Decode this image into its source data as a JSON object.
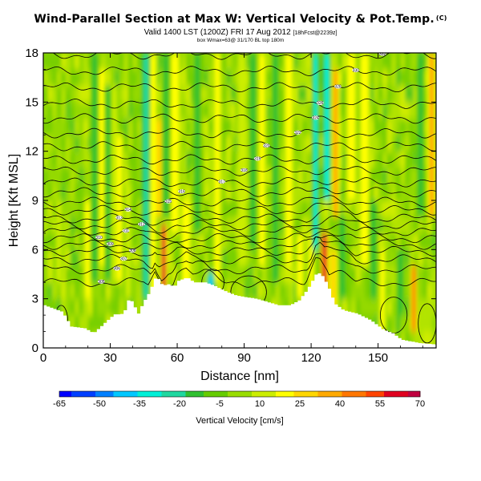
{
  "chart_data": {
    "type": "heatmap",
    "title": "Wind-Parallel Section at Max W: Vertical Velocity & Pot.Temp.",
    "title_mark": "(C)",
    "subtitle": "Valid 1400 LST (1200Z) FRI 17 Aug 2012",
    "subtitle_tag": "[18hFcst@2239z]",
    "subsubtitle": "box Wmax=63@ 31/170 BL top 180m",
    "xlabel": "Distance [nm]",
    "ylabel": "Height [Kft MSL]",
    "xlim": [
      0,
      176
    ],
    "ylim": [
      0,
      18
    ],
    "xticks": [
      "0",
      "30",
      "60",
      "90",
      "120",
      "150"
    ],
    "yticks": [
      "0",
      "3",
      "6",
      "9",
      "12",
      "15",
      "18"
    ],
    "colorbar": {
      "label": "Vertical Velocity [cm/s]",
      "ticks": [
        "-65",
        "-50",
        "-35",
        "-20",
        "-5",
        "10",
        "25",
        "40",
        "55",
        "70"
      ],
      "range": [
        -65,
        70
      ]
    },
    "terrain": [
      [
        0,
        2.6
      ],
      [
        8,
        2.2
      ],
      [
        12,
        1.3
      ],
      [
        18,
        1.2
      ],
      [
        22,
        0.9
      ],
      [
        26,
        1.4
      ],
      [
        30,
        1.9
      ],
      [
        32,
        2.1
      ],
      [
        34,
        2.0
      ],
      [
        36,
        2.3
      ],
      [
        38,
        3.1
      ],
      [
        40,
        2.6
      ],
      [
        42,
        2.1
      ],
      [
        44,
        2.7
      ],
      [
        47,
        3.4
      ],
      [
        50,
        4.4
      ],
      [
        53,
        3.8
      ],
      [
        56,
        3.9
      ],
      [
        58,
        3.7
      ],
      [
        60,
        4.1
      ],
      [
        64,
        4.3
      ],
      [
        67,
        4.0
      ],
      [
        72,
        4.0
      ],
      [
        76,
        3.8
      ],
      [
        82,
        3.4
      ],
      [
        86,
        3.2
      ],
      [
        90,
        3.1
      ],
      [
        95,
        3.0
      ],
      [
        100,
        2.8
      ],
      [
        105,
        2.6
      ],
      [
        110,
        2.6
      ],
      [
        114,
        2.9
      ],
      [
        118,
        3.6
      ],
      [
        122,
        4.6
      ],
      [
        124,
        4.5
      ],
      [
        127,
        3.8
      ],
      [
        130,
        2.7
      ],
      [
        134,
        2.3
      ],
      [
        140,
        2.1
      ],
      [
        146,
        1.7
      ],
      [
        152,
        1.1
      ],
      [
        156,
        0.9
      ],
      [
        160,
        0.5
      ],
      [
        164,
        0.4
      ],
      [
        168,
        0.3
      ],
      [
        176,
        0.2
      ]
    ],
    "updrafts": [
      {
        "x": 26,
        "y": [
          5,
          17
        ],
        "w": 3,
        "v": 22
      },
      {
        "x": 31,
        "y": [
          4,
          16
        ],
        "w": 2.5,
        "v": 15
      },
      {
        "x": 34,
        "y": [
          4,
          13
        ],
        "w": 2,
        "v": 18
      },
      {
        "x": 38,
        "y": [
          3,
          10
        ],
        "w": 2,
        "v": 12
      },
      {
        "x": 49,
        "y": [
          3,
          18
        ],
        "w": 2.5,
        "v": 20
      },
      {
        "x": 54,
        "y": [
          3.5,
          7.5
        ],
        "w": 1.5,
        "v": 58
      },
      {
        "x": 52,
        "y": [
          8,
          14
        ],
        "w": 2.5,
        "v": 28
      },
      {
        "x": 59,
        "y": [
          7,
          18
        ],
        "w": 3,
        "v": 20
      },
      {
        "x": 64,
        "y": [
          3,
          9
        ],
        "w": 3,
        "v": 16
      },
      {
        "x": 78,
        "y": [
          4,
          18
        ],
        "w": 2,
        "v": 18
      },
      {
        "x": 89,
        "y": [
          5,
          18
        ],
        "w": 2,
        "v": 15
      },
      {
        "x": 98,
        "y": [
          5,
          18
        ],
        "w": 2,
        "v": 18
      },
      {
        "x": 110,
        "y": [
          5,
          18
        ],
        "w": 2.5,
        "v": 22
      },
      {
        "x": 115,
        "y": [
          3,
          7
        ],
        "w": 2,
        "v": 18
      },
      {
        "x": 120,
        "y": [
          3,
          7
        ],
        "w": 1.5,
        "v": 20
      },
      {
        "x": 126,
        "y": [
          3.5,
          7
        ],
        "w": 1.5,
        "v": 60
      },
      {
        "x": 130,
        "y": [
          2.5,
          6
        ],
        "w": 2,
        "v": 30
      },
      {
        "x": 131,
        "y": [
          8,
          17
        ],
        "w": 2,
        "v": 35
      },
      {
        "x": 138,
        "y": [
          9,
          18
        ],
        "w": 3,
        "v": 20
      },
      {
        "x": 144,
        "y": [
          5,
          18
        ],
        "w": 3,
        "v": 16
      },
      {
        "x": 152,
        "y": [
          1,
          6
        ],
        "w": 1.5,
        "v": 18
      },
      {
        "x": 166,
        "y": [
          1,
          5
        ],
        "w": 1.2,
        "v": 45
      },
      {
        "x": 174,
        "y": [
          8,
          18
        ],
        "w": 2,
        "v": 35
      },
      {
        "x": 20,
        "y": [
          3,
          9
        ],
        "w": 2,
        "v": 16
      },
      {
        "x": 7,
        "y": [
          4,
          9
        ],
        "w": 2,
        "v": 12
      }
    ],
    "downdrafts": [
      {
        "x": 23,
        "y": [
          4,
          18
        ],
        "w": 2,
        "v": -15
      },
      {
        "x": 29,
        "y": [
          4,
          16
        ],
        "w": 1.5,
        "v": -12
      },
      {
        "x": 46,
        "y": [
          3,
          18
        ],
        "w": 2,
        "v": -22
      },
      {
        "x": 55,
        "y": [
          8,
          18
        ],
        "w": 2,
        "v": -12
      },
      {
        "x": 69,
        "y": [
          7,
          18
        ],
        "w": 2,
        "v": -18
      },
      {
        "x": 75,
        "y": [
          3,
          4.5
        ],
        "w": 1.5,
        "v": -40
      },
      {
        "x": 94,
        "y": [
          6,
          18
        ],
        "w": 2,
        "v": -15
      },
      {
        "x": 104,
        "y": [
          4,
          18
        ],
        "w": 2,
        "v": -18
      },
      {
        "x": 122,
        "y": [
          6,
          18
        ],
        "w": 1.5,
        "v": -28
      },
      {
        "x": 127,
        "y": [
          9,
          18
        ],
        "w": 2,
        "v": -33
      },
      {
        "x": 134,
        "y": [
          3,
          8
        ],
        "w": 2,
        "v": -18
      },
      {
        "x": 148,
        "y": [
          3,
          9
        ],
        "w": 2,
        "v": -15
      },
      {
        "x": 160,
        "y": [
          2,
          6
        ],
        "w": 2,
        "v": -14
      },
      {
        "x": 169,
        "y": [
          8,
          18
        ],
        "w": 2,
        "v": -12
      }
    ],
    "isentrope_levels": [
      4,
      4.8,
      5.4,
      5.9,
      6.3,
      6.7,
      7.1,
      7.5,
      7.9,
      8.4,
      8.9,
      9.5,
      10.1,
      10.8,
      11.5,
      12.3,
      13.1,
      14.0,
      14.9,
      15.9,
      16.9,
      17.9
    ],
    "isentrope_values": [
      "305",
      "306",
      "307",
      "308",
      "309",
      "310",
      "311",
      "312",
      "313",
      "314",
      "315",
      "316",
      "317",
      "318",
      "319",
      "320",
      "322",
      "324",
      "326",
      "328",
      "330",
      "332"
    ],
    "colors": {
      "scale": [
        "#0000ff",
        "#0040ff",
        "#0080ff",
        "#00c8ff",
        "#00f0d8",
        "#20d8a0",
        "#30c030",
        "#66cc00",
        "#99dd00",
        "#ccee00",
        "#ffff00",
        "#ffd700",
        "#ffaa00",
        "#ff7700",
        "#ff4400",
        "#e00020",
        "#c00040"
      ],
      "terrain": "#ffffff",
      "contour": "#000000",
      "frame": "#000000"
    }
  }
}
